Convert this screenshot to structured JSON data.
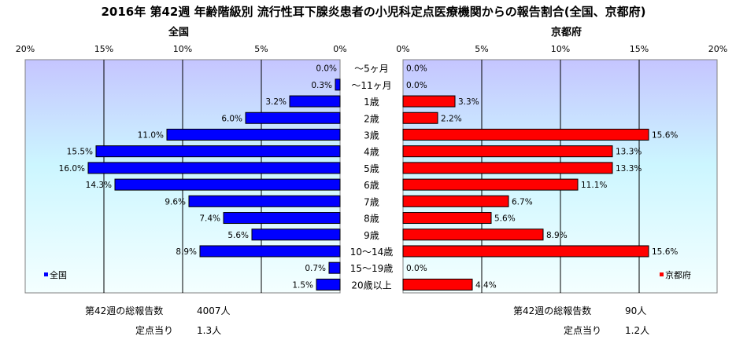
{
  "title": "2016年 第42週 年齢階級別 流行性耳下腺炎患者の小児科定点医療機関からの報告割合(全国、京都府)",
  "chart_data": {
    "type": "bar",
    "categories": [
      "～5ヶ月",
      "～11ヶ月",
      "1歳",
      "2歳",
      "3歳",
      "4歳",
      "5歳",
      "6歳",
      "7歳",
      "8歳",
      "9歳",
      "10～14歳",
      "15～19歳",
      "20歳以上"
    ],
    "xlim": [
      0,
      20
    ],
    "xticks": [
      "20%",
      "15%",
      "10%",
      "5%",
      "0%"
    ],
    "xticks_right": [
      "0%",
      "5%",
      "10%",
      "15%",
      "20%"
    ],
    "panels": [
      {
        "title": "全国",
        "legend": "全国",
        "color": "#0000ff",
        "values": [
          0.0,
          0.3,
          3.2,
          6.0,
          11.0,
          15.5,
          16.0,
          14.3,
          9.6,
          7.4,
          5.6,
          8.9,
          0.7,
          1.5
        ],
        "labels": [
          "0.0%",
          "0.3%",
          "3.2%",
          "6.0%",
          "11.0%",
          "15.5%",
          "16.0%",
          "14.3%",
          "9.6%",
          "7.4%",
          "5.6%",
          "8.9%",
          "0.7%",
          "1.5%"
        ],
        "total_label": "第42週の総報告数",
        "total_value": "4007人",
        "per_site_label": "定点当り",
        "per_site_value": "1.3人"
      },
      {
        "title": "京都府",
        "legend": "京都府",
        "color": "#ff0000",
        "values": [
          0.0,
          0.0,
          3.3,
          2.2,
          15.6,
          13.3,
          13.3,
          11.1,
          6.7,
          5.6,
          8.9,
          15.6,
          0.0,
          4.4
        ],
        "labels": [
          "0.0%",
          "0.0%",
          "3.3%",
          "2.2%",
          "15.6%",
          "13.3%",
          "13.3%",
          "11.1%",
          "6.7%",
          "5.6%",
          "8.9%",
          "15.6%",
          "0.0%",
          "4.4%"
        ],
        "total_label": "第42週の総報告数",
        "total_value": "90人",
        "per_site_label": "定点当り",
        "per_site_value": "1.2人"
      }
    ]
  }
}
